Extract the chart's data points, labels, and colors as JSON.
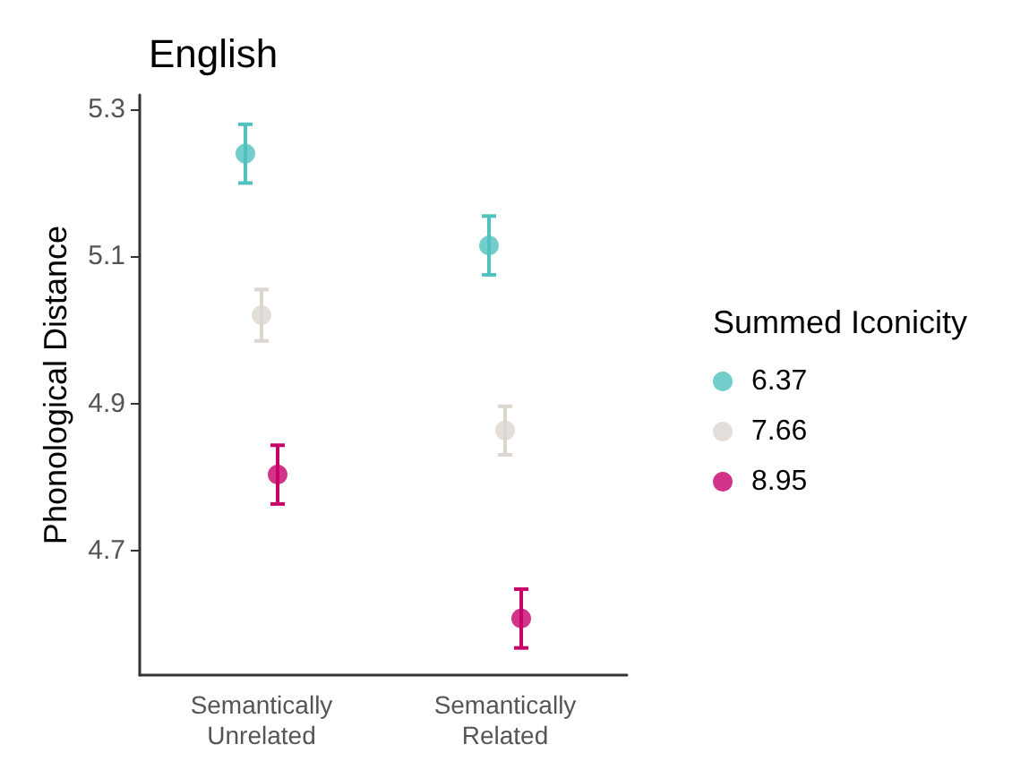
{
  "chart_data": {
    "type": "scatter",
    "title": "English",
    "ylabel": "Phonological Distance",
    "legend_title": "Summed Iconicity",
    "categories": [
      "Semantically\nUnrelated",
      "Semantically\nRelated"
    ],
    "series": [
      {
        "name": "6.37",
        "color": "#4fc1be",
        "values": [
          5.24,
          5.115
        ],
        "errors": [
          0.04,
          0.04
        ]
      },
      {
        "name": "7.66",
        "color": "#dcd6cf",
        "values": [
          5.02,
          4.863
        ],
        "errors": [
          0.035,
          0.033
        ]
      },
      {
        "name": "8.95",
        "color": "#c8006a",
        "values": [
          4.803,
          4.607
        ],
        "errors": [
          0.04,
          0.04
        ]
      }
    ],
    "ylim": [
      4.53,
      5.32
    ],
    "yticks": [
      4.7,
      4.9,
      5.1,
      5.3
    ],
    "grid": false,
    "legend": "right",
    "marker": "circle"
  }
}
